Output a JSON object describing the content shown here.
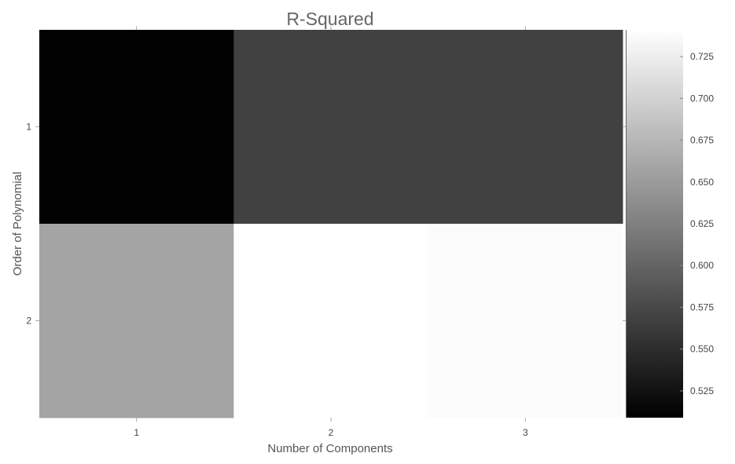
{
  "chart_data": {
    "type": "heatmap",
    "title": "R-Squared",
    "xlabel": "Number of Components",
    "ylabel": "Order of Polynomial",
    "x_categories": [
      "1",
      "2",
      "3"
    ],
    "y_categories": [
      "1",
      "2"
    ],
    "values": [
      [
        0.51,
        0.568,
        0.568
      ],
      [
        0.658,
        0.74,
        0.738
      ]
    ],
    "colorbar": {
      "min": 0.509,
      "max": 0.741,
      "ticks": [
        0.525,
        0.55,
        0.575,
        0.6,
        0.625,
        0.65,
        0.675,
        0.7,
        0.725
      ],
      "tick_labels": [
        "0.525",
        "0.550",
        "0.575",
        "0.600",
        "0.625",
        "0.650",
        "0.675",
        "0.700",
        "0.725"
      ],
      "colormap": "grayscale"
    },
    "grid": false,
    "legend": "right"
  }
}
